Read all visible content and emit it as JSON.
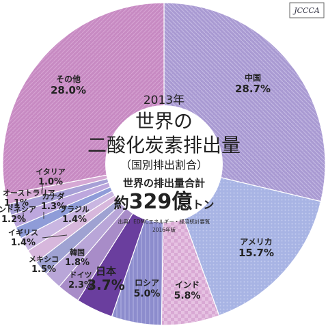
{
  "logo_text": "JCCCA",
  "center": {
    "year": "2013年",
    "title_line1": "世界の",
    "title_line2": "二酸化炭素排出量",
    "subtitle": "（国別排出割合）",
    "total_label": "世界の排出量合計",
    "total_prefix": "約",
    "total_value": "329億",
    "total_unit": "トン",
    "source": "出典）EDMCエネルギー・経済統計要覧",
    "edition": "2016年版"
  },
  "chart_data": {
    "type": "pie",
    "slices": [
      {
        "name": "中国",
        "value": 28.7,
        "value_label": "28.7%",
        "color": "#a99ad2"
      },
      {
        "name": "アメリカ",
        "value": 15.7,
        "value_label": "15.7%",
        "color": "#a8b4e4"
      },
      {
        "name": "インド",
        "value": 5.8,
        "value_label": "5.8%",
        "color": "#d9a9d4"
      },
      {
        "name": "ロシア",
        "value": 5.0,
        "value_label": "5.0%",
        "color": "#8c8ccd"
      },
      {
        "name": "日本",
        "value": 3.7,
        "value_label": "3.7%",
        "color": "#6a3e9e"
      },
      {
        "name": "ドイツ",
        "value": 2.3,
        "value_label": "2.3%",
        "color": "#a88cc8"
      },
      {
        "name": "韓国",
        "value": 1.8,
        "value_label": "1.8%",
        "color": "#b9a6d8"
      },
      {
        "name": "メキシコ",
        "value": 1.5,
        "value_label": "1.5%",
        "color": "#9fa2d2"
      },
      {
        "name": "イギリス",
        "value": 1.4,
        "value_label": "1.4%",
        "color": "#d7b7dc"
      },
      {
        "name": "ブラジル",
        "value": 1.4,
        "value_label": "1.4%",
        "color": "#c9b6e1"
      },
      {
        "name": "インドネシア",
        "value": 1.2,
        "value_label": "1.2%",
        "color": "#8f9cd8"
      },
      {
        "name": "カナダ",
        "value": 1.3,
        "value_label": "1.3%",
        "color": "#bda7dd"
      },
      {
        "name": "オーストラリア",
        "value": 1.1,
        "value_label": "1.1%",
        "color": "#a7a0d6"
      },
      {
        "name": "イタリア",
        "value": 1.0,
        "value_label": "1.0%",
        "color": "#d5a8d4"
      },
      {
        "name": "その他",
        "value": 28.0,
        "value_label": "28.0%",
        "color": "#c78ac2"
      }
    ]
  }
}
